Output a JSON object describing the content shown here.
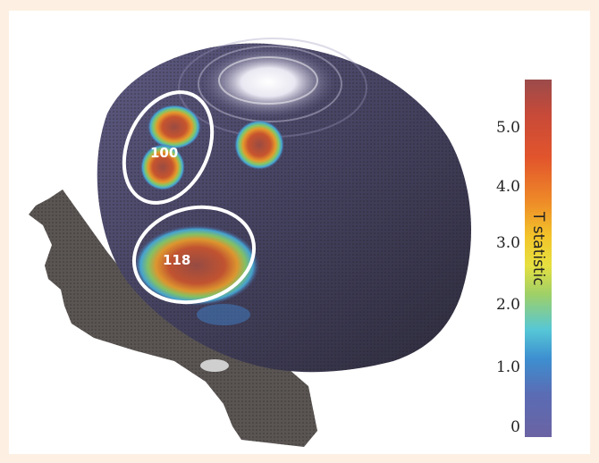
{
  "regions": [
    {
      "label": "100"
    },
    {
      "label": "118"
    }
  ],
  "colorbar": {
    "title": "T statistic",
    "ticks": [
      "5.0",
      "4.0",
      "3.0",
      "2.0",
      "1.0",
      "0"
    ],
    "range": [
      0,
      6
    ],
    "colors": [
      "#6b63a3",
      "#3d8fd0",
      "#56c7d6",
      "#9fd067",
      "#f3c52a",
      "#ee8a28",
      "#c84a38",
      "#9b4b4b"
    ]
  }
}
